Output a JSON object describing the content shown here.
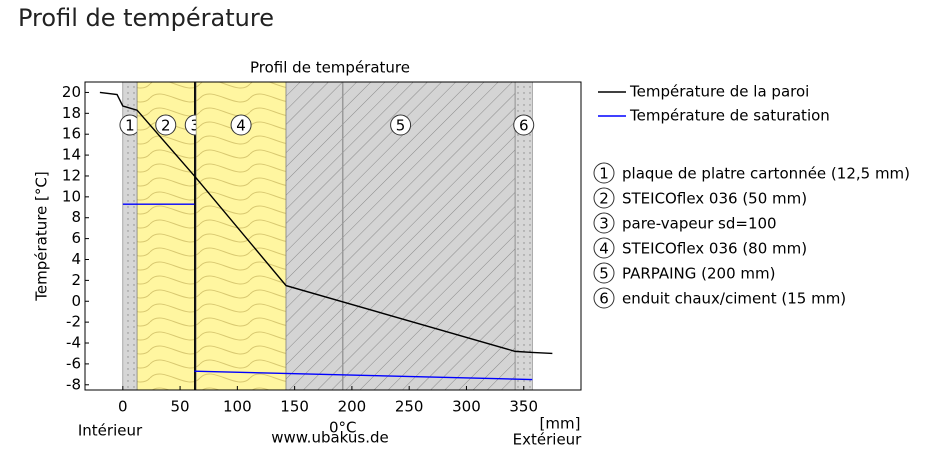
{
  "header": {
    "title": "Profil de température"
  },
  "chart_data": {
    "type": "line",
    "title": "Profil de température",
    "y_label": "Température [°C]",
    "x_label": "[mm]",
    "inside_label": "Intérieur",
    "outside_label": "Extérieur",
    "source": "www.ubakus.de",
    "zero_line_label": "0°C",
    "zero_line_x": 192,
    "xlim": [
      -33,
      400
    ],
    "xticks": [
      0,
      50,
      100,
      150,
      200,
      250,
      300,
      350
    ],
    "ylim": [
      -8.5,
      21
    ],
    "yticks": [
      20,
      18,
      16,
      14,
      12,
      10,
      8,
      6,
      4,
      2,
      0,
      -2,
      -4,
      -6,
      -8
    ],
    "series": [
      {
        "name": "Température de la paroi",
        "color": "#000000",
        "x": [
          -20,
          -5,
          0,
          12.5,
          62.5,
          142.5,
          342.5,
          357.5,
          375
        ],
        "values": [
          20,
          19.8,
          18.7,
          18.3,
          12.0,
          1.5,
          -4.8,
          -4.9,
          -5.0
        ]
      },
      {
        "name": "Température de saturation",
        "color": "#0000ff",
        "x": [
          0,
          62.5,
          62.5,
          62.5,
          357.5
        ],
        "values": [
          9.3,
          9.3,
          null,
          -6.7,
          -7.5
        ]
      }
    ],
    "layers": [
      {
        "number": "1",
        "label": "plaque de platre cartonnée (12,5 mm)",
        "start": 0,
        "end": 12.5,
        "fill": "#d6d6d6"
      },
      {
        "number": "2",
        "label": "STEICOflex 036 (50 mm)",
        "start": 12.5,
        "end": 62.5,
        "fill": "#fff6a0"
      },
      {
        "number": "3",
        "label": "pare-vapeur sd=100",
        "start": 62.5,
        "end": 64,
        "fill": "#000000"
      },
      {
        "number": "4",
        "label": "STEICOflex 036 (80 mm)",
        "start": 64,
        "end": 142.5,
        "fill": "#fff6a0"
      },
      {
        "number": "5",
        "label": "PARPAING (200 mm)",
        "start": 142.5,
        "end": 342.5,
        "fill": "#d4d4d4"
      },
      {
        "number": "6",
        "label": "enduit chaux/ciment (15 mm)",
        "start": 342.5,
        "end": 357.5,
        "fill": "#d6d6d6"
      }
    ]
  }
}
